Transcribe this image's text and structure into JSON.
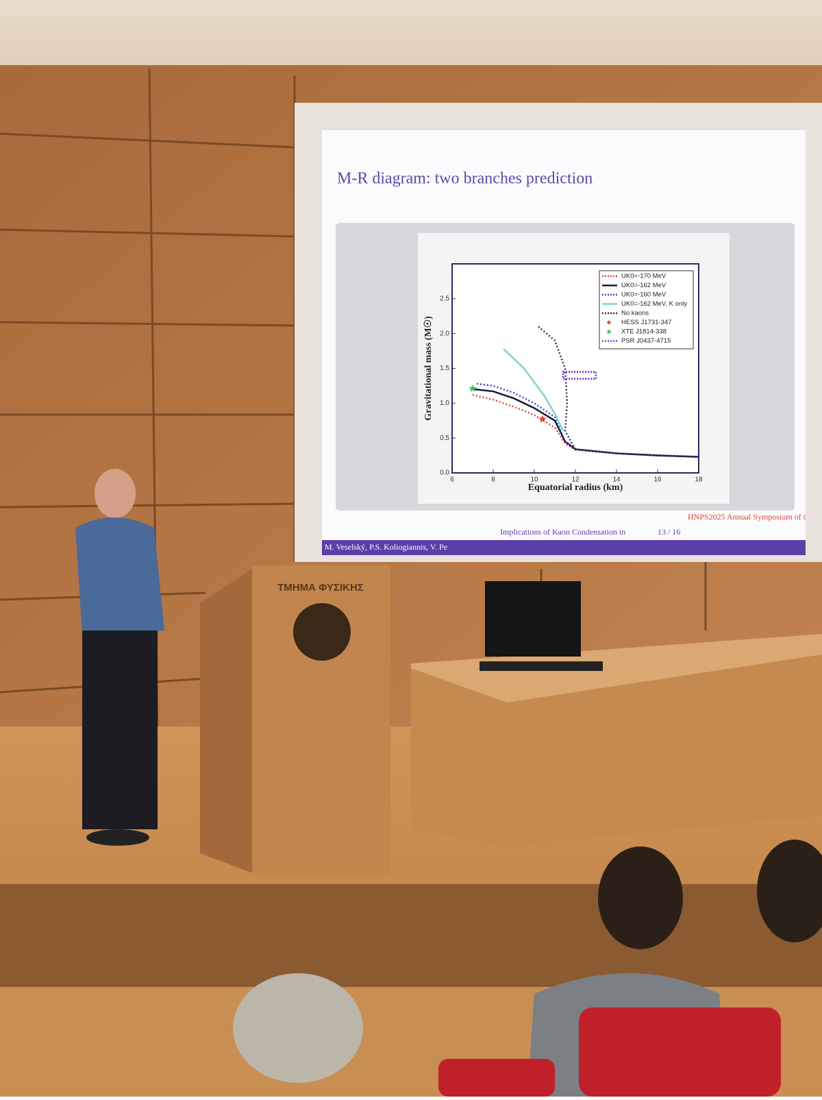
{
  "slide": {
    "title": "M-R diagram: two branches prediction",
    "footer_right": "HNPS2025 Annual Symposium of t",
    "footer_left": "M. Veselský, P.S. Koliogiannis, V. Pe",
    "footer_center": "Implications of Kaon Condensation in",
    "page": "13 / 16"
  },
  "podium": {
    "label": "ΤΜΗΜΑ ΦΥΣΙΚΗΣ"
  },
  "chart_data": {
    "type": "line",
    "xlabel": "Equatorial radius (km)",
    "ylabel": "Gravitational mass (M☉)",
    "xlim": [
      6,
      18
    ],
    "ylim": [
      0,
      3
    ],
    "xticks": [
      6,
      8,
      10,
      12,
      14,
      16,
      18
    ],
    "yticks": [
      {
        "value": 0,
        "label": "0.0"
      },
      0.5,
      {
        "value": 1,
        "label": "1.0"
      },
      1.5,
      {
        "value": 2,
        "label": "2.0"
      },
      2.5
    ],
    "legend": "upper right",
    "series": [
      {
        "name": "UK0=-170 MeV",
        "color": "#d9443a",
        "style": "dotted",
        "x": [
          7,
          8,
          9,
          10,
          11,
          11.5,
          12,
          14,
          16,
          18
        ],
        "values": [
          1.12,
          1.05,
          0.95,
          0.83,
          0.65,
          0.42,
          0.33,
          0.28,
          0.25,
          0.23
        ]
      },
      {
        "name": "UK0=-162 MeV",
        "color": "#1a1a2e",
        "style": "solid",
        "x": [
          7.1,
          8,
          9,
          10,
          11,
          11.5,
          12,
          14,
          16,
          18
        ],
        "values": [
          1.2,
          1.17,
          1.07,
          0.93,
          0.75,
          0.45,
          0.34,
          0.28,
          0.25,
          0.23
        ]
      },
      {
        "name": "UK0=-160 MeV",
        "color": "#3b3bd0",
        "style": "dotted",
        "x": [
          7.2,
          8,
          9,
          10,
          11,
          11.5,
          12,
          14,
          16,
          18
        ],
        "values": [
          1.28,
          1.25,
          1.15,
          1,
          0.8,
          0.45,
          0.34,
          0.28,
          0.25,
          0.23
        ]
      },
      {
        "name": "UK0=-162 MeV, K only",
        "color": "#7fd6c0",
        "style": "solid",
        "x": [
          8.5,
          9.5,
          10.5,
          11,
          11.4
        ],
        "values": [
          1.78,
          1.5,
          1.1,
          0.85,
          0.6
        ]
      },
      {
        "name": "No kaons",
        "color": "#2a2a40",
        "style": "dotted",
        "x": [
          10.2,
          11,
          11.5,
          11.6,
          11.5,
          12,
          14,
          18
        ],
        "values": [
          2.1,
          1.9,
          1.5,
          1,
          0.6,
          0.34,
          0.28,
          0.23
        ]
      },
      {
        "name": "HESS J1731-347",
        "color": "#d9443a",
        "style": "star",
        "x": [
          10.4
        ],
        "values": [
          0.77
        ]
      },
      {
        "name": "XTE J1814-338",
        "color": "#3cc060",
        "style": "star",
        "x": [
          7
        ],
        "values": [
          1.21
        ]
      },
      {
        "name": "PSR J0437-4715",
        "color": "#7a3fd0",
        "style": "box",
        "x": [
          12.2
        ],
        "xerr": [
          0.8
        ],
        "values": [
          1.4
        ],
        "yerr": [
          0.05
        ]
      }
    ]
  }
}
